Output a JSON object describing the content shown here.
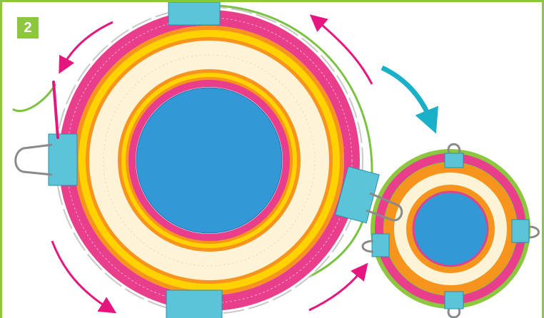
{
  "step_badge": "2"
}
